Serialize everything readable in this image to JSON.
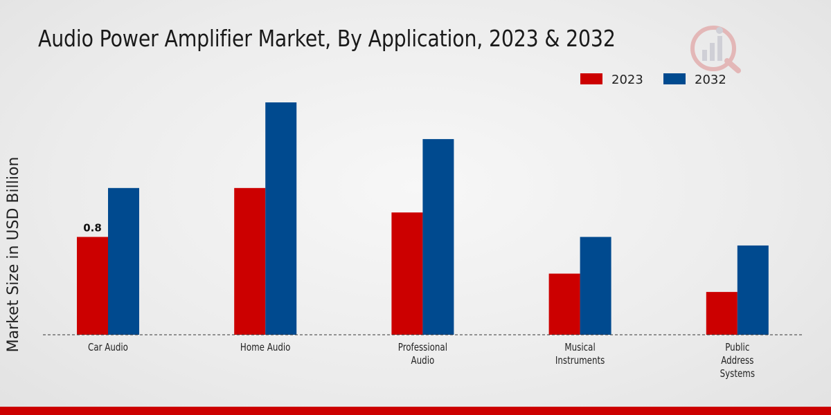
{
  "chart_data": {
    "type": "bar",
    "title": "Audio Power Amplifier Market, By Application, 2023 & 2032",
    "xlabel": "",
    "ylabel": "Market Size in USD Billion",
    "ylim": [
      0,
      2.2
    ],
    "grid": false,
    "legend_position": "top-right",
    "categories": [
      "Car Audio",
      "Home Audio",
      "Professional Audio",
      "Musical Instruments",
      "Public Address Systems"
    ],
    "category_lines": [
      [
        "Car Audio"
      ],
      [
        "Home Audio"
      ],
      [
        "Professional",
        "Audio"
      ],
      [
        "Musical",
        "Instruments"
      ],
      [
        "Public",
        "Address",
        "Systems"
      ]
    ],
    "series": [
      {
        "name": "2023",
        "color": "#cc0000",
        "values": [
          0.8,
          1.2,
          1.0,
          0.5,
          0.35
        ]
      },
      {
        "name": "2032",
        "color": "#004a8f",
        "values": [
          1.2,
          1.9,
          1.6,
          0.8,
          0.73
        ]
      }
    ],
    "data_labels": [
      {
        "series": 0,
        "index": 0,
        "text": "0.8"
      }
    ]
  }
}
